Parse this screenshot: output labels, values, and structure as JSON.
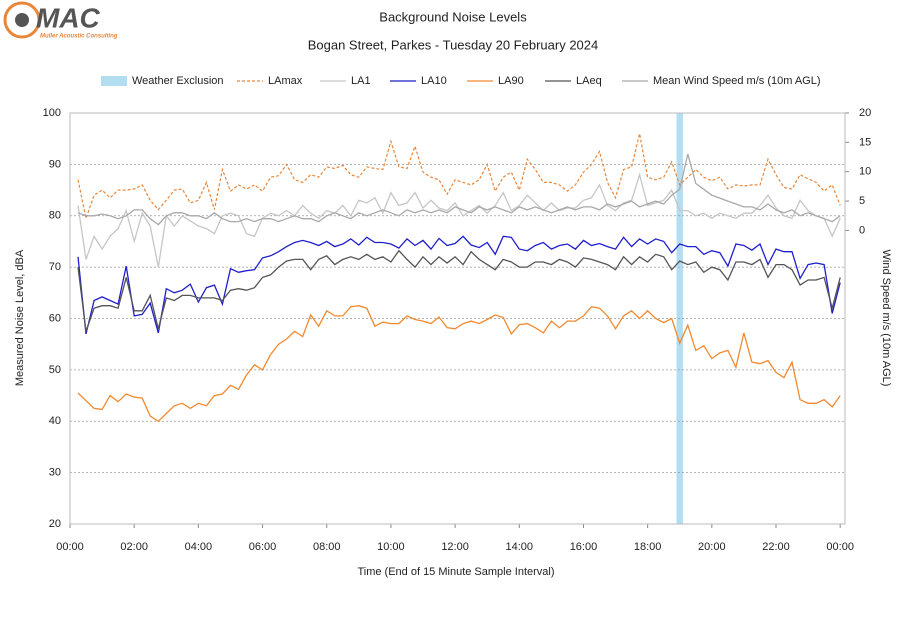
{
  "logo": {
    "name": "MAC",
    "tagline": "Muller Acoustic Consulting"
  },
  "chart_data": {
    "type": "line",
    "title": "Background Noise Levels",
    "subtitle": "Bogan Street, Parkes - Tuesday 20 February 2024",
    "x_label": "Time (End of 15 Minute Sample Interval)",
    "y_label": "Measured Noise Level, dBA",
    "y2_label": "Wind Speed m/s (10m AGL)",
    "xlim": [
      0,
      24.15
    ],
    "xticks": [
      {
        "value": 0,
        "label": "00:00"
      },
      {
        "value": 2,
        "label": "02:00"
      },
      {
        "value": 4,
        "label": "04:00"
      },
      {
        "value": 6,
        "label": "06:00"
      },
      {
        "value": 8,
        "label": "08:00"
      },
      {
        "value": 10,
        "label": "10:00"
      },
      {
        "value": 12,
        "label": "12:00"
      },
      {
        "value": 14,
        "label": "14:00"
      },
      {
        "value": 16,
        "label": "16:00"
      },
      {
        "value": 18,
        "label": "18:00"
      },
      {
        "value": 20,
        "label": "20:00"
      },
      {
        "value": 22,
        "label": "22:00"
      },
      {
        "value": 24,
        "label": "00:00"
      }
    ],
    "ylim": [
      20,
      100
    ],
    "yticks": [
      20,
      30,
      40,
      50,
      60,
      70,
      80,
      90,
      100
    ],
    "y2lim": [
      -50,
      20
    ],
    "y2ticks": [
      0,
      5,
      10,
      15,
      20
    ],
    "grid": true,
    "weather_exclusion": {
      "name": "Weather Exclusion",
      "color": "#b3def2",
      "x": [
        18.9,
        19.1
      ]
    },
    "x": [
      0.25,
      0.5,
      0.75,
      1,
      1.25,
      1.5,
      1.75,
      2,
      2.25,
      2.5,
      2.75,
      3,
      3.25,
      3.5,
      3.75,
      4,
      4.25,
      4.5,
      4.75,
      5,
      5.25,
      5.5,
      5.75,
      6,
      6.25,
      6.5,
      6.75,
      7,
      7.25,
      7.5,
      7.75,
      8,
      8.25,
      8.5,
      8.75,
      9,
      9.25,
      9.5,
      9.75,
      10,
      10.25,
      10.5,
      10.75,
      11,
      11.25,
      11.5,
      11.75,
      12,
      12.25,
      12.5,
      12.75,
      13,
      13.25,
      13.5,
      13.75,
      14,
      14.25,
      14.5,
      14.75,
      15,
      15.25,
      15.5,
      15.75,
      16,
      16.25,
      16.5,
      16.75,
      17,
      17.25,
      17.5,
      17.75,
      18,
      18.25,
      18.5,
      18.75,
      19,
      19.25,
      19.5,
      19.75,
      20,
      20.25,
      20.5,
      20.75,
      21,
      21.25,
      21.5,
      21.75,
      22,
      22.25,
      22.5,
      22.75,
      23,
      23.25,
      23.5,
      23.75,
      24
    ],
    "series": [
      {
        "name": "LAmax",
        "color": "#e8873a",
        "dash": true,
        "values": [
          87,
          79.5,
          84,
          85,
          83.5,
          85,
          85,
          85.2,
          86,
          83,
          81.2,
          83,
          85,
          85.2,
          82.5,
          83,
          86.5,
          81.2,
          89,
          84.8,
          86,
          85.2,
          86,
          84.8,
          87.5,
          87.8,
          90,
          87,
          86.5,
          88,
          87.5,
          89.5,
          89.2,
          89.8,
          88,
          87.5,
          89.5,
          89.2,
          89,
          94.5,
          89.5,
          89.2,
          93.5,
          88.5,
          87.5,
          87,
          84.2,
          87,
          86.5,
          86,
          87,
          90,
          84.8,
          87.5,
          88.5,
          85,
          91,
          89,
          86.5,
          86.5,
          86,
          84.8,
          86,
          88.5,
          90,
          92.5,
          86.5,
          83.5,
          89,
          89.5,
          96,
          87.5,
          87,
          87.5,
          90.5,
          86,
          87.5,
          89,
          87.5,
          86.8,
          87.5,
          85.2,
          86,
          85.8,
          86,
          86,
          91,
          88,
          85.5,
          85.2,
          88,
          87.2,
          86.5,
          84.8,
          86,
          82
        ]
      },
      {
        "name": "LA1",
        "color": "#c6c6c6",
        "values": [
          82,
          71.5,
          76,
          73.5,
          76,
          77.5,
          81,
          75,
          80.5,
          78,
          70,
          80,
          78,
          80,
          79,
          78,
          77.5,
          76.5,
          80,
          80.5,
          80,
          76.5,
          76,
          79.5,
          80.5,
          80,
          81,
          80,
          82,
          80.5,
          79.5,
          81,
          80.5,
          82,
          80,
          83,
          82.5,
          83.5,
          80.5,
          84.5,
          82,
          82.5,
          84.5,
          81.5,
          83,
          81.5,
          81,
          82.5,
          80,
          81,
          82,
          80.5,
          82,
          84.5,
          81,
          82,
          84,
          82.5,
          81,
          82.5,
          81,
          81.5,
          81.5,
          83,
          83.5,
          86,
          82,
          81,
          82.5,
          83,
          88,
          82,
          82.5,
          83,
          85,
          81,
          81,
          80,
          80.5,
          79.5,
          80.5,
          80,
          79.5,
          80.5,
          80.5,
          82,
          84,
          81.5,
          80,
          79.5,
          83,
          81,
          80,
          79.5,
          76,
          79.5
        ]
      },
      {
        "name": "LA10",
        "color": "#1f1fcc",
        "values": [
          72,
          57,
          63.5,
          64.2,
          63.5,
          62.8,
          70.2,
          60.5,
          60.8,
          63,
          57.2,
          65.8,
          65,
          65.5,
          66.7,
          63.2,
          66,
          66.5,
          62.8,
          69.7,
          69,
          69.3,
          69.5,
          71.8,
          72.2,
          73,
          74,
          74.8,
          75.2,
          74.8,
          74.2,
          75,
          74,
          74.5,
          75.5,
          74.3,
          75.8,
          74.8,
          74.8,
          74.5,
          73.7,
          75.5,
          74.2,
          75.2,
          73.5,
          75.6,
          74.2,
          74.6,
          76,
          74.3,
          73.8,
          74.8,
          72.5,
          76,
          75.8,
          73.5,
          73.2,
          74.2,
          74.8,
          73.5,
          74.2,
          74.5,
          73.5,
          75.2,
          74.2,
          74.6,
          74,
          73.5,
          75.8,
          74,
          75.5,
          74.5,
          75.5,
          75,
          72.8,
          74.5,
          74,
          74,
          72.5,
          73.2,
          72.8,
          70.2,
          74.5,
          74.2,
          73.3,
          74.5,
          70.5,
          73.5,
          73,
          73,
          67.8,
          70.5,
          70.8,
          70.5,
          61,
          67
        ]
      },
      {
        "name": "LA90",
        "color": "#f08a30",
        "values": [
          45.5,
          44,
          42.5,
          42.3,
          45,
          43.8,
          45.3,
          44.7,
          44.5,
          41,
          40,
          41.5,
          43,
          43.5,
          42.5,
          43.5,
          43,
          45,
          45.3,
          47,
          46.2,
          49,
          51,
          50,
          53,
          55,
          56,
          57.5,
          56.5,
          60.7,
          58.5,
          61.5,
          60.5,
          60.5,
          62.3,
          62.5,
          62,
          58.5,
          59.3,
          59,
          59,
          60.5,
          59.8,
          59.5,
          59,
          60.3,
          58.2,
          58,
          59,
          59.5,
          59,
          59.8,
          60.7,
          60.2,
          57,
          58.8,
          59,
          58.2,
          57.2,
          59.5,
          58.2,
          59.5,
          59.5,
          60.5,
          62.3,
          62,
          60.5,
          58,
          60.5,
          61.5,
          60,
          61.5,
          60,
          59.2,
          60,
          55.2,
          58.7,
          53.8,
          54.7,
          52.2,
          53.3,
          53.8,
          50.5,
          57.2,
          51.5,
          51.2,
          51.8,
          49.5,
          48.5,
          51.5,
          44.2,
          43.5,
          43.5,
          44.2,
          42.8,
          45
        ]
      },
      {
        "name": "LAeq",
        "color": "#555555",
        "values": [
          70,
          57.5,
          62,
          62.5,
          62.5,
          62,
          68,
          61.5,
          61.5,
          64.5,
          58,
          64,
          63.5,
          64.5,
          64.5,
          64,
          64,
          64,
          63.5,
          65.5,
          65.8,
          65.5,
          66,
          68,
          68.5,
          70,
          71.2,
          71.5,
          71.5,
          69.5,
          71.5,
          72.2,
          70.5,
          71.5,
          72,
          71.5,
          72.5,
          71.5,
          72,
          71,
          73.2,
          71.5,
          70,
          72,
          70.5,
          72,
          70.8,
          72,
          70.5,
          73,
          71.5,
          70.5,
          69.5,
          71.5,
          71,
          70,
          70,
          71,
          71,
          70.5,
          71.5,
          71,
          70,
          71.8,
          71.5,
          71,
          70.5,
          69.5,
          72,
          70.5,
          72,
          71,
          72.5,
          72,
          69.5,
          71.2,
          70.5,
          71,
          69,
          70,
          69.5,
          67.5,
          71,
          71,
          70.5,
          71.5,
          68,
          70.5,
          70.5,
          69.5,
          66.5,
          67.5,
          67.5,
          68,
          62,
          68
        ]
      },
      {
        "name": "Mean Wind Speed m/s (10m AGL)",
        "color": "#a8a8a8",
        "axis": "y2",
        "values": [
          3,
          2.5,
          2.5,
          2.8,
          2.5,
          2,
          2.5,
          3.5,
          3.5,
          2,
          1,
          2.5,
          3,
          3,
          2.5,
          2.5,
          2,
          3,
          2,
          1.5,
          1.5,
          2,
          1.5,
          2,
          2,
          1.5,
          2,
          2.5,
          2,
          2,
          1.5,
          2.5,
          3,
          2.5,
          2,
          3,
          2.5,
          3,
          3.5,
          3,
          2.5,
          3.5,
          3,
          3.5,
          3,
          3.5,
          3,
          4,
          3.5,
          3,
          4,
          3.5,
          4,
          3.5,
          3,
          4,
          3.5,
          4,
          3.5,
          3,
          3.5,
          4,
          3.5,
          4,
          4,
          3.5,
          4.5,
          4,
          4.5,
          5,
          4,
          4.5,
          5,
          4.5,
          6,
          7,
          13,
          8,
          7,
          6,
          5.5,
          5,
          4.5,
          4,
          4,
          3.5,
          4.5,
          3.5,
          3,
          3.5,
          2.5,
          3,
          2.5,
          2,
          1.5,
          2.5
        ]
      }
    ]
  }
}
